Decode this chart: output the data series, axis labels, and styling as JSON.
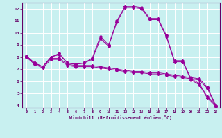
{
  "title": "",
  "xlabel": "Windchill (Refroidissement éolien,°C)",
  "ylabel": "",
  "bg_color": "#c8f0f0",
  "line_color": "#990099",
  "grid_color": "#ffffff",
  "axis_color": "#660066",
  "text_color": "#660066",
  "xlim": [
    -0.5,
    23.5
  ],
  "ylim": [
    3.8,
    12.5
  ],
  "xticks": [
    0,
    1,
    2,
    3,
    4,
    5,
    6,
    7,
    8,
    9,
    10,
    11,
    12,
    13,
    14,
    15,
    16,
    17,
    18,
    19,
    20,
    21,
    22,
    23
  ],
  "yticks": [
    4,
    5,
    6,
    7,
    8,
    9,
    10,
    11,
    12
  ],
  "line1_x": [
    0,
    1,
    2,
    3,
    4,
    5,
    6,
    7,
    8,
    9,
    10,
    11,
    12,
    13,
    14,
    15,
    16,
    17,
    18,
    19,
    20,
    21,
    22,
    23
  ],
  "line1_y": [
    8.1,
    7.5,
    7.2,
    8.0,
    8.3,
    7.5,
    7.4,
    7.5,
    7.9,
    9.7,
    9.0,
    11.0,
    12.2,
    12.2,
    12.1,
    11.2,
    11.2,
    9.8,
    7.7,
    7.7,
    6.2,
    5.8,
    4.7,
    4.0
  ],
  "line2_x": [
    0,
    1,
    2,
    3,
    4,
    5,
    6,
    7,
    8,
    9,
    10,
    11,
    12,
    13,
    14,
    15,
    16,
    17,
    18,
    19,
    20,
    21,
    22,
    23
  ],
  "line2_y": [
    8.0,
    7.5,
    7.2,
    8.0,
    8.2,
    7.5,
    7.4,
    7.5,
    7.8,
    9.5,
    8.9,
    10.9,
    12.1,
    12.1,
    12.0,
    11.1,
    11.1,
    9.7,
    7.6,
    7.6,
    6.1,
    5.7,
    4.6,
    3.9
  ],
  "line3_x": [
    0,
    1,
    2,
    3,
    4,
    5,
    6,
    7,
    8,
    9,
    10,
    11,
    12,
    13,
    14,
    15,
    16,
    17,
    18,
    19,
    20,
    21,
    22,
    23
  ],
  "line3_y": [
    8.1,
    7.5,
    7.2,
    7.9,
    7.9,
    7.4,
    7.3,
    7.3,
    7.3,
    7.2,
    7.1,
    7.0,
    6.9,
    6.8,
    6.8,
    6.7,
    6.7,
    6.6,
    6.5,
    6.4,
    6.3,
    6.2,
    5.5,
    4.0
  ],
  "line4_x": [
    0,
    1,
    2,
    3,
    4,
    5,
    6,
    7,
    8,
    9,
    10,
    11,
    12,
    13,
    14,
    15,
    16,
    17,
    18,
    19,
    20,
    21,
    22,
    23
  ],
  "line4_y": [
    8.0,
    7.4,
    7.1,
    7.8,
    7.8,
    7.3,
    7.2,
    7.2,
    7.2,
    7.1,
    7.0,
    6.9,
    6.8,
    6.7,
    6.7,
    6.6,
    6.6,
    6.5,
    6.4,
    6.3,
    6.2,
    6.1,
    5.4,
    3.9
  ]
}
